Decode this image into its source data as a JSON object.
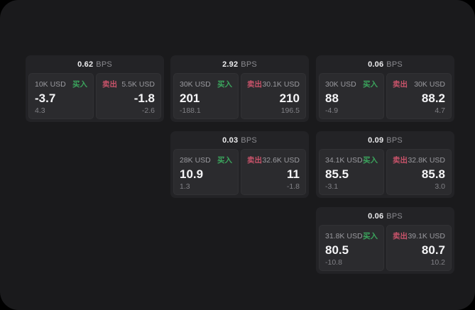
{
  "theme": {
    "outer_bg": "#000000",
    "panel_bg": "#1a1a1c",
    "card_bg": "#232326",
    "tile_bg": "#2b2b2e",
    "buy_color": "#3ba55d",
    "sell_color": "#c8536a",
    "value_color": "#f5f5f7",
    "muted_color": "#9a9a9f"
  },
  "labels": {
    "buy": "买入",
    "sell": "卖出",
    "bps_unit": "BPS"
  },
  "cards": [
    {
      "row": 0,
      "col": 0,
      "bps": "0.62",
      "buy": {
        "amount": "10K USD",
        "value": "-3.7",
        "delta": "4.3"
      },
      "sell": {
        "amount": "5.5K USD",
        "value": "-1.8",
        "delta": "-2.6"
      }
    },
    {
      "row": 0,
      "col": 1,
      "bps": "2.92",
      "buy": {
        "amount": "30K USD",
        "value": "201",
        "delta": "-188.1"
      },
      "sell": {
        "amount": "30.1K USD",
        "value": "210",
        "delta": "196.5"
      }
    },
    {
      "row": 0,
      "col": 2,
      "bps": "0.06",
      "buy": {
        "amount": "30K USD",
        "value": "88",
        "delta": "-4.9"
      },
      "sell": {
        "amount": "30K USD",
        "value": "88.2",
        "delta": "4.7"
      }
    },
    {
      "row": 1,
      "col": 1,
      "bps": "0.03",
      "buy": {
        "amount": "28K USD",
        "value": "10.9",
        "delta": "1.3"
      },
      "sell": {
        "amount": "32.6K USD",
        "value": "11",
        "delta": "-1.8"
      }
    },
    {
      "row": 1,
      "col": 2,
      "bps": "0.09",
      "buy": {
        "amount": "34.1K USD",
        "value": "85.5",
        "delta": "-3.1"
      },
      "sell": {
        "amount": "32.8K USD",
        "value": "85.8",
        "delta": "3.0"
      }
    },
    {
      "row": 2,
      "col": 2,
      "bps": "0.06",
      "buy": {
        "amount": "31.8K USD",
        "value": "80.5",
        "delta": "-10.8"
      },
      "sell": {
        "amount": "39.1K USD",
        "value": "80.7",
        "delta": "10.2"
      }
    }
  ]
}
